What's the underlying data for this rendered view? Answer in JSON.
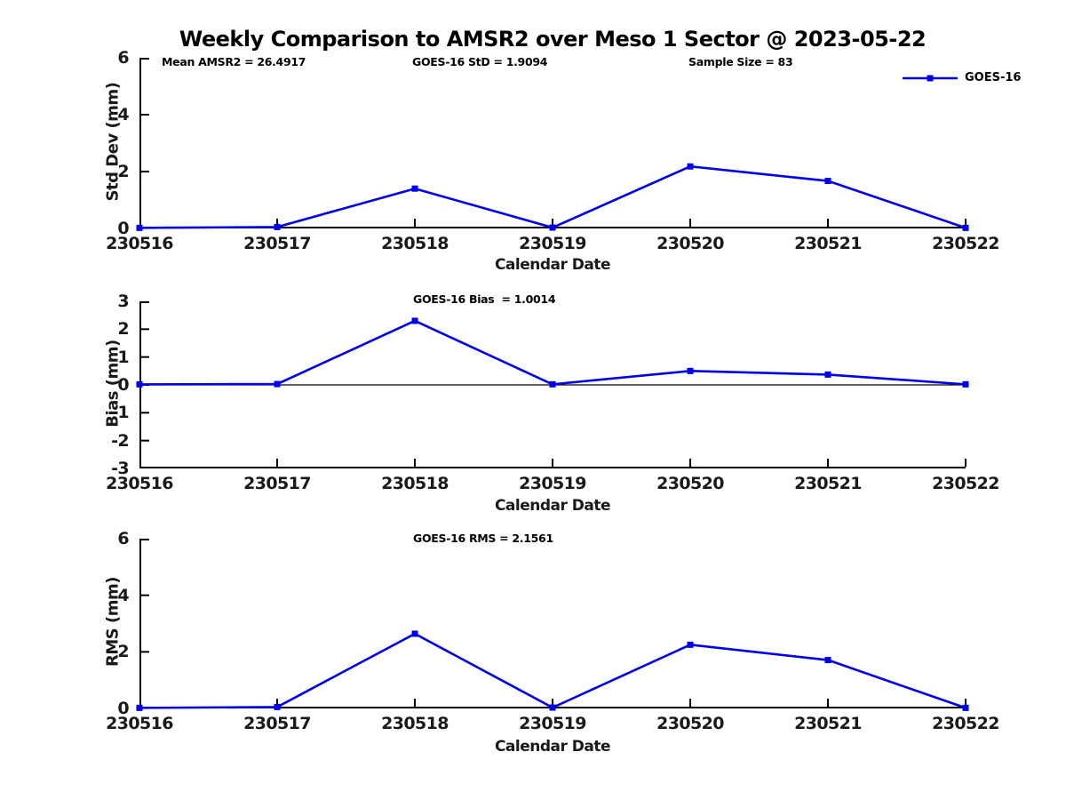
{
  "title": "Weekly Comparison to AMSR2 over Meso 1 Sector @ 2023-05-22",
  "legend": {
    "label": "GOES-16",
    "position": "top-right"
  },
  "colors": {
    "line": "#0000ee",
    "axis": "#000000",
    "text": "#000000",
    "background": "#ffffff"
  },
  "chart_data": [
    {
      "type": "line",
      "id": "std-dev",
      "annotations": [
        "Mean AMSR2 = 26.4917",
        "GOES-16 StD = 1.9094",
        "Sample Size = 83"
      ],
      "categories": [
        "230516",
        "230517",
        "230518",
        "230519",
        "230520",
        "230521",
        "230522"
      ],
      "series": [
        {
          "name": "GOES-16",
          "values": [
            0.02,
            0.05,
            1.4,
            0.03,
            2.18,
            1.67,
            0.02
          ]
        }
      ],
      "xlabel": "Calendar Date",
      "ylabel": "Std Dev (mm)",
      "ylim": [
        0,
        6
      ],
      "yticks": [
        0,
        2,
        4,
        6
      ],
      "grid": false,
      "zero_line": false,
      "marker": "square",
      "legend_position": "top-right"
    },
    {
      "type": "line",
      "id": "bias",
      "annotations": [
        "GOES-16 Bias  = 1.0014"
      ],
      "categories": [
        "230516",
        "230517",
        "230518",
        "230519",
        "230520",
        "230521",
        "230522"
      ],
      "series": [
        {
          "name": "GOES-16",
          "values": [
            0.02,
            0.03,
            2.3,
            0.02,
            0.5,
            0.37,
            0.02
          ]
        }
      ],
      "xlabel": "Calendar Date",
      "ylabel": "Bias (mm)",
      "ylim": [
        -3,
        3
      ],
      "yticks": [
        3,
        2,
        1,
        0,
        -1,
        -2,
        -3
      ],
      "grid": false,
      "zero_line": true,
      "marker": "square",
      "legend_position": "none"
    },
    {
      "type": "line",
      "id": "rms",
      "annotations": [
        "GOES-16 RMS = 2.1561"
      ],
      "categories": [
        "230516",
        "230517",
        "230518",
        "230519",
        "230520",
        "230521",
        "230522"
      ],
      "series": [
        {
          "name": "GOES-16",
          "values": [
            0.02,
            0.05,
            2.64,
            0.03,
            2.25,
            1.71,
            0.02
          ]
        }
      ],
      "xlabel": "Calendar Date",
      "ylabel": "RMS (mm)",
      "ylim": [
        0,
        6
      ],
      "yticks": [
        0,
        2,
        4,
        6
      ],
      "grid": false,
      "zero_line": false,
      "marker": "square",
      "legend_position": "none"
    }
  ]
}
